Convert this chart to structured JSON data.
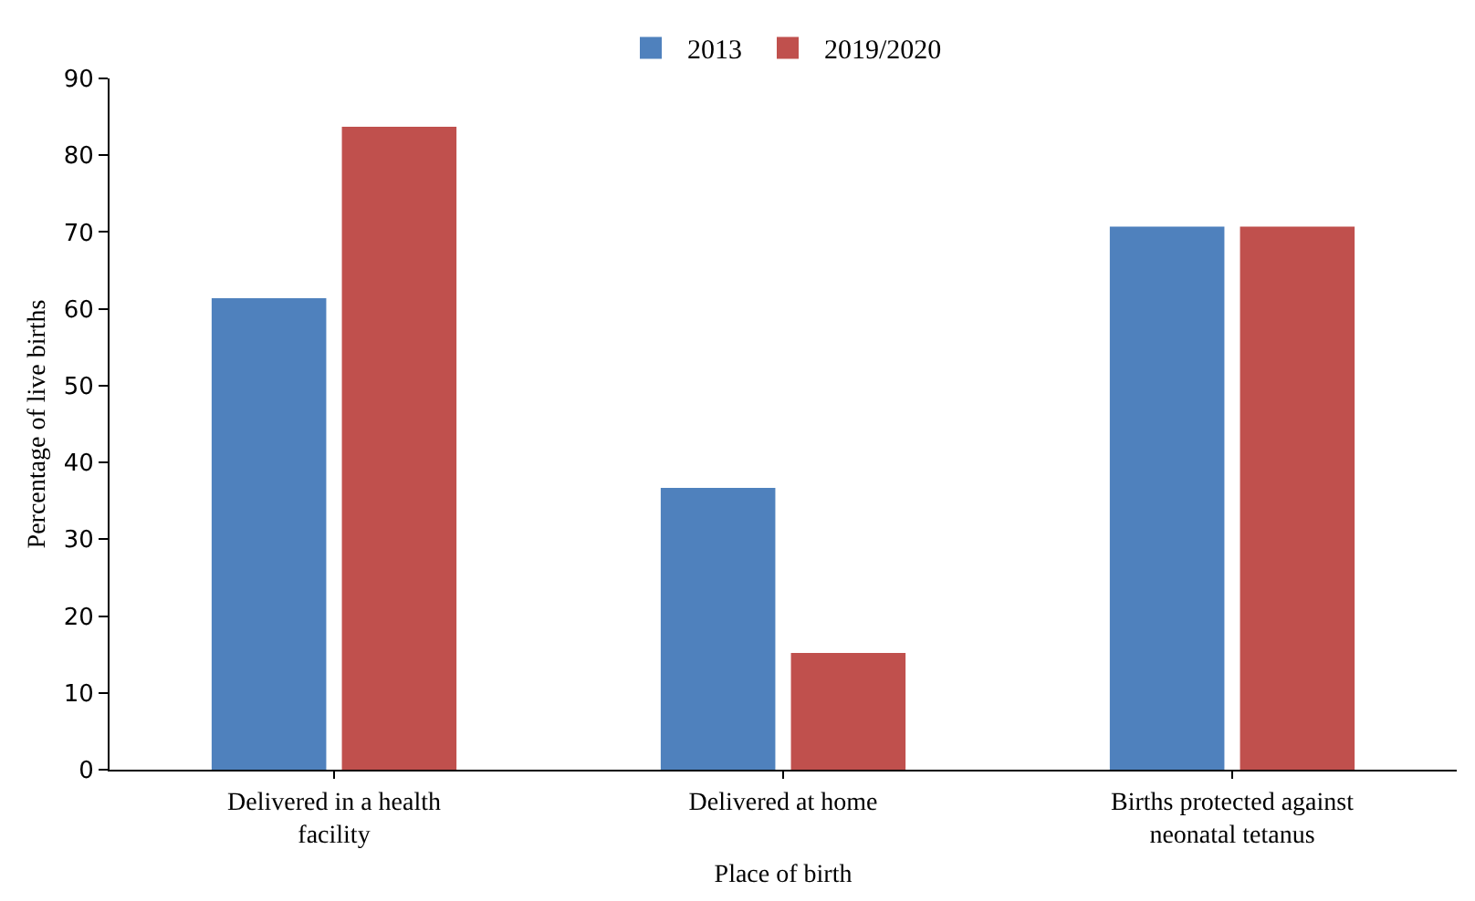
{
  "chart_data": {
    "type": "bar",
    "xlabel": "Place of birth",
    "ylabel": "Percentage of live births",
    "categories": [
      "Delivered in a health facility",
      "Delivered at home",
      "Births protected against neonatal tetanus"
    ],
    "series": [
      {
        "name": "2013",
        "color": "#4f81bd",
        "values": [
          61.4,
          36.7,
          70.7
        ]
      },
      {
        "name": "2019/2020",
        "color": "#c0504d",
        "values": [
          83.7,
          15.2,
          70.7
        ]
      }
    ],
    "ylim": [
      0,
      90
    ],
    "yticks": [
      0,
      10,
      20,
      30,
      40,
      50,
      60,
      70,
      80,
      90
    ],
    "grid": false,
    "legend": "top"
  }
}
